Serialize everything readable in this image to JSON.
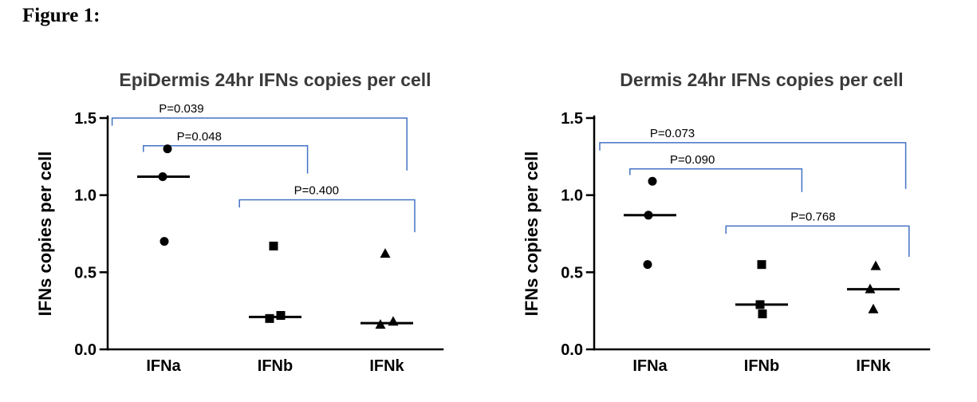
{
  "figure_label": "Figure 1:",
  "chart_data": [
    {
      "type": "scatter",
      "title": "EpiDermis 24hr IFNs copies per cell",
      "ylabel": "IFNs copies per cell",
      "ylim": [
        0,
        1.5
      ],
      "yticks": [
        0.0,
        0.5,
        1.0,
        1.5
      ],
      "categories": [
        "IFNa",
        "IFNb",
        "IFNk"
      ],
      "marker_shapes": [
        "circle",
        "square",
        "triangle"
      ],
      "point_color": "#000000",
      "bracket_color": "#4472C4",
      "grid": false,
      "legend": "none",
      "groups": [
        {
          "name": "IFNa",
          "marker": "circle",
          "points": [
            {
              "y": 1.3,
              "dx": 5
            },
            {
              "y": 1.12,
              "dx": -1
            },
            {
              "y": 0.7,
              "dx": 1
            }
          ],
          "median": 1.12
        },
        {
          "name": "IFNb",
          "marker": "square",
          "points": [
            {
              "y": 0.67,
              "dx": -2
            },
            {
              "y": 0.22,
              "dx": 7
            },
            {
              "y": 0.2,
              "dx": -7
            }
          ],
          "median": 0.21
        },
        {
          "name": "IFNk",
          "marker": "triangle",
          "points": [
            {
              "y": 0.62,
              "dx": -2
            },
            {
              "y": 0.18,
              "dx": 8
            },
            {
              "y": 0.16,
              "dx": -8
            }
          ],
          "median": 0.17
        }
      ],
      "comparisons": [
        {
          "label": "P=0.039",
          "x1": -0.46,
          "x2": 2.18,
          "y": 1.5,
          "drop1": 0.05,
          "drop2": 0.34,
          "label_x": 0.16
        },
        {
          "label": "P=0.048",
          "x1": -0.18,
          "x2": 1.29,
          "y": 1.32,
          "drop1": 0.04,
          "drop2": 0.18,
          "label_x": 0.32
        },
        {
          "label": "P=0.400",
          "x1": 0.68,
          "x2": 2.25,
          "y": 0.97,
          "drop1": 0.05,
          "drop2": 0.21,
          "label_x": 1.37
        }
      ]
    },
    {
      "type": "scatter",
      "title": "Dermis 24hr IFNs copies per cell",
      "ylabel": "IFNs copies per cell",
      "ylim": [
        0,
        1.5
      ],
      "yticks": [
        0.0,
        0.5,
        1.0,
        1.5
      ],
      "categories": [
        "IFNa",
        "IFNb",
        "IFNk"
      ],
      "marker_shapes": [
        "circle",
        "square",
        "triangle"
      ],
      "point_color": "#000000",
      "bracket_color": "#4472C4",
      "grid": false,
      "legend": "none",
      "groups": [
        {
          "name": "IFNa",
          "marker": "circle",
          "points": [
            {
              "y": 1.09,
              "dx": 3
            },
            {
              "y": 0.87,
              "dx": -2
            },
            {
              "y": 0.55,
              "dx": -3
            }
          ],
          "median": 0.87
        },
        {
          "name": "IFNb",
          "marker": "square",
          "points": [
            {
              "y": 0.55,
              "dx": 0
            },
            {
              "y": 0.29,
              "dx": -2
            },
            {
              "y": 0.23,
              "dx": 1
            }
          ],
          "median": 0.29
        },
        {
          "name": "IFNk",
          "marker": "triangle",
          "points": [
            {
              "y": 0.54,
              "dx": 3
            },
            {
              "y": 0.39,
              "dx": -4
            },
            {
              "y": 0.26,
              "dx": 0
            }
          ],
          "median": 0.39
        }
      ],
      "comparisons": [
        {
          "label": "P=0.073",
          "x1": -0.45,
          "x2": 2.29,
          "y": 1.34,
          "drop1": 0.05,
          "drop2": 0.3,
          "label_x": 0.2
        },
        {
          "label": "P=0.090",
          "x1": -0.18,
          "x2": 1.36,
          "y": 1.17,
          "drop1": 0.04,
          "drop2": 0.15,
          "label_x": 0.38
        },
        {
          "label": "P=0.768",
          "x1": 0.68,
          "x2": 2.32,
          "y": 0.8,
          "drop1": 0.05,
          "drop2": 0.2,
          "label_x": 1.46
        }
      ]
    }
  ]
}
